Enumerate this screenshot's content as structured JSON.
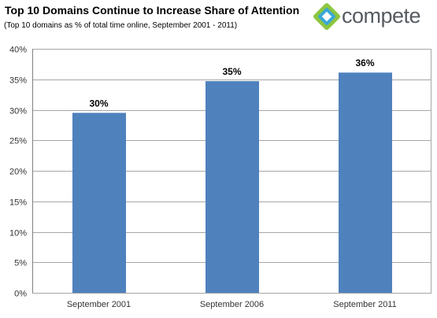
{
  "header": {
    "title": "Top 10 Domains Continue to Increase Share of Attention",
    "subtitle": "(Top 10 domains as % of total time online, September 2001 - 2011)",
    "logo_text": "compete",
    "logo_icon": "compete-logo-icon"
  },
  "colors": {
    "bar": "#4f81bd",
    "grid": "#a6a6a6",
    "logo_green": "#8dc63f",
    "logo_blue": "#3aa8d8",
    "logo_text": "#555b61"
  },
  "chart_data": {
    "type": "bar",
    "title": "Top 10 Domains Continue to Increase Share of Attention",
    "subtitle": "(Top 10 domains as % of total time online, September 2001 - 2011)",
    "categories": [
      "September 2001",
      "September 2006",
      "September 2011"
    ],
    "values": [
      29.5,
      34.7,
      36.1
    ],
    "data_labels": [
      "30%",
      "35%",
      "36%"
    ],
    "xlabel": "",
    "ylabel": "",
    "ylim": [
      0,
      40
    ],
    "yticks": [
      0,
      5,
      10,
      15,
      20,
      25,
      30,
      35,
      40
    ],
    "ytick_labels": [
      "0%",
      "5%",
      "10%",
      "15%",
      "20%",
      "25%",
      "30%",
      "35%",
      "40%"
    ],
    "grid": true,
    "legend": "none"
  }
}
